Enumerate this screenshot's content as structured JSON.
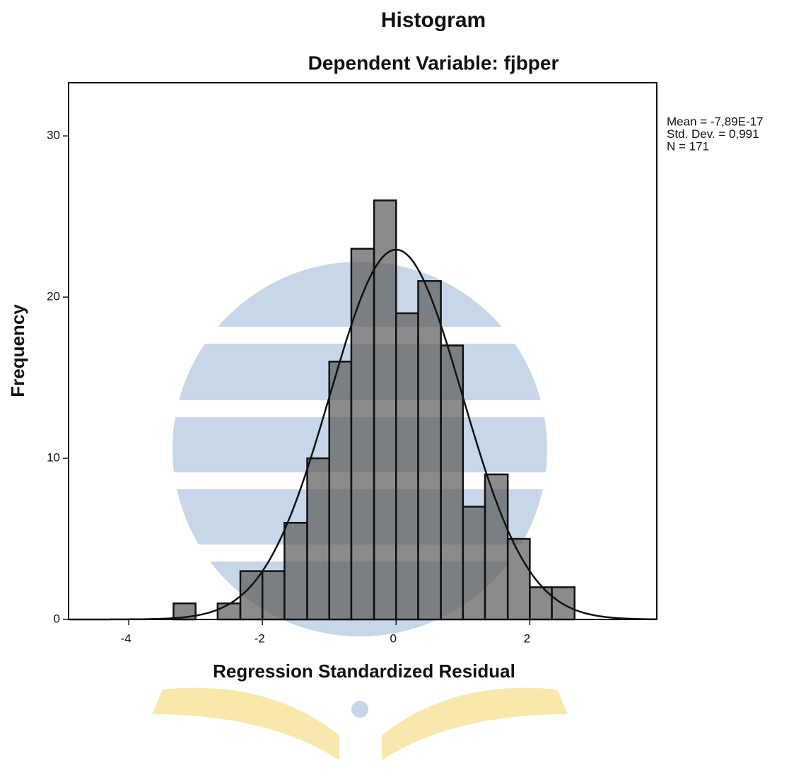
{
  "chart_data": {
    "type": "histogram",
    "title": "Histogram",
    "subtitle": "Dependent Variable: fjbper",
    "x_label": "Regression Standardized Residual",
    "y_label": "Frequency",
    "bins": [
      -3.33,
      -3.0,
      -2.67,
      -2.33,
      -2.0,
      -1.67,
      -1.33,
      -1.0,
      -0.67,
      -0.33,
      0.0,
      0.33,
      0.67,
      1.0,
      1.33,
      1.67,
      2.0,
      2.33,
      2.67
    ],
    "counts": [
      1,
      0,
      1,
      3,
      3,
      6,
      10,
      16,
      23,
      26,
      19,
      21,
      17,
      7,
      9,
      5,
      2,
      2
    ],
    "color": "#5a5a5a",
    "xlim": [
      -4.9,
      3.9
    ],
    "xticks": [
      -4,
      -2,
      0,
      2
    ],
    "ylim": [
      0,
      33.3
    ],
    "yticks": [
      0,
      10,
      20,
      30
    ],
    "grid": false,
    "normal_curve": true,
    "stats": [
      {
        "label": "Mean = -7,89E-17",
        "value": -7.89e-17
      },
      {
        "label": "Std. Dev. = 0,991",
        "value": 0.991
      },
      {
        "label": "N = 171",
        "value": 171
      }
    ]
  }
}
